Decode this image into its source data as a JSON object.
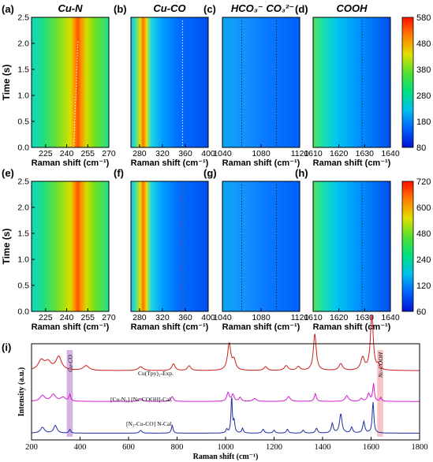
{
  "chart_data": [
    {
      "type": "heatmap",
      "panel": "(a)",
      "title": "Cu-N",
      "xlabel": "Raman shift (cm⁻¹)",
      "ylabel": "Time (s)",
      "xlim": [
        215,
        270
      ],
      "xticks": [
        225,
        240,
        255,
        270
      ],
      "ylim": [
        0,
        2.5
      ],
      "yticks": [
        0.0,
        0.5,
        1.0,
        1.5,
        2.0,
        2.5
      ],
      "peak_center": 245,
      "peak_end": 248,
      "marker_style": "dotted-drifting"
    },
    {
      "type": "heatmap",
      "panel": "(b)",
      "title": "Cu-CO",
      "xlabel": "Raman shift (cm⁻¹)",
      "xlim": [
        265,
        400
      ],
      "xticks": [
        280,
        320,
        360,
        400
      ],
      "ylim": [
        0,
        2.5
      ],
      "peak_center": 293,
      "marker_x": 355
    },
    {
      "type": "heatmap",
      "panel": "(c)",
      "title": "HCO₃⁻  CO₃²⁻",
      "xlabel": "Raman shift (cm⁻¹)",
      "xlim": [
        1040,
        1120
      ],
      "xticks": [
        1040,
        1080,
        1120
      ],
      "ylim": [
        0,
        2.5
      ],
      "marker_x": [
        1060,
        1096
      ]
    },
    {
      "type": "heatmap",
      "panel": "(d)",
      "title": "COOH",
      "xlabel": "Raman shift (cm⁻¹)",
      "xlim": [
        1610,
        1640
      ],
      "xticks": [
        1610,
        1620,
        1630,
        1640
      ],
      "ylim": [
        0,
        2.5
      ],
      "marker_x": 1629
    },
    {
      "type": "heatmap",
      "panel": "(e)",
      "xlabel": "Raman shift (cm⁻¹)",
      "ylabel": "Time (s)",
      "xlim": [
        215,
        270
      ],
      "xticks": [
        225,
        240,
        255,
        270
      ],
      "ylim": [
        0,
        2.5
      ],
      "yticks": [
        0.0,
        0.5,
        1.0,
        1.5,
        2.0,
        2.5
      ],
      "peak_center": 245
    },
    {
      "type": "heatmap",
      "panel": "(f)",
      "xlabel": "Raman shift (cm⁻¹)",
      "xlim": [
        265,
        400
      ],
      "xticks": [
        280,
        320,
        360,
        400
      ],
      "ylim": [
        0,
        2.5
      ],
      "peak_center": 293,
      "marker_x": 355
    },
    {
      "type": "heatmap",
      "panel": "(g)",
      "xlabel": "Raman shift (cm⁻¹)",
      "xlim": [
        1040,
        1120
      ],
      "xticks": [
        1040,
        1080,
        1120
      ],
      "ylim": [
        0,
        2.5
      ],
      "marker_x": [
        1060,
        1096
      ]
    },
    {
      "type": "heatmap",
      "panel": "(h)",
      "xlabel": "Raman shift (cm⁻¹)",
      "xlim": [
        1610,
        1640
      ],
      "xticks": [
        1610,
        1620,
        1630,
        1640
      ],
      "ylim": [
        0,
        2.5
      ],
      "marker_x": 1629
    },
    {
      "type": "line",
      "panel": "(i)",
      "xlabel": "Raman shift (cm⁻¹)",
      "ylabel": "Intensity (a.u.)",
      "xlim": [
        200,
        1800
      ],
      "xticks": [
        200,
        400,
        600,
        800,
        1000,
        1200,
        1400,
        1600,
        1800
      ],
      "highlights": [
        {
          "label": "Cu-CO",
          "x": [
            345,
            370
          ],
          "color": "#c9a0dc"
        },
        {
          "label": "Nc-COOH",
          "x": [
            1625,
            1650
          ],
          "color": "#f4b6b6"
        }
      ],
      "series": [
        {
          "name": "Cu(Tpy)₂-Exp.",
          "color": "#cc1f1f",
          "baseline": 0.72,
          "peaks": [
            [
              240,
              0.1,
              15
            ],
            [
              268,
              0.08,
              15
            ],
            [
              312,
              0.14,
              14
            ],
            [
              425,
              0.05,
              14
            ],
            [
              650,
              0.04,
              12
            ],
            [
              785,
              0.07,
              8
            ],
            [
              850,
              0.05,
              8
            ],
            [
              1015,
              0.28,
              8
            ],
            [
              1035,
              0.1,
              8
            ],
            [
              1165,
              0.04,
              8
            ],
            [
              1250,
              0.05,
              9
            ],
            [
              1300,
              0.04,
              8
            ],
            [
              1368,
              0.38,
              7
            ],
            [
              1475,
              0.07,
              9
            ],
            [
              1565,
              0.13,
              9
            ],
            [
              1603,
              0.58,
              7
            ],
            [
              1630,
              0.05,
              6
            ]
          ]
        },
        {
          "name": "[Cu-N₃] [Nc-COOH]-Cal.",
          "color": "#d21cd2",
          "baseline": 0.4,
          "peaks": [
            [
              245,
              0.06,
              12
            ],
            [
              290,
              0.07,
              12
            ],
            [
              330,
              0.04,
              12
            ],
            [
              358,
              0.07,
              4
            ],
            [
              650,
              0.03,
              8
            ],
            [
              780,
              0.05,
              6
            ],
            [
              1010,
              0.09,
              6
            ],
            [
              1030,
              0.07,
              6
            ],
            [
              1060,
              0.04,
              6
            ],
            [
              1120,
              0.03,
              8
            ],
            [
              1260,
              0.05,
              8
            ],
            [
              1370,
              0.08,
              5
            ],
            [
              1500,
              0.06,
              8
            ],
            [
              1560,
              0.03,
              6
            ],
            [
              1590,
              0.08,
              6
            ],
            [
              1610,
              0.18,
              4
            ],
            [
              1640,
              0.04,
              4
            ]
          ]
        },
        {
          "name": "[N₃-Cu-CO] N-Cal.",
          "color": "#1f2fa0",
          "baseline": 0.07,
          "peaks": [
            [
              245,
              0.06,
              10
            ],
            [
              298,
              0.08,
              8
            ],
            [
              358,
              0.04,
              4
            ],
            [
              650,
              0.03,
              6
            ],
            [
              780,
              0.08,
              4
            ],
            [
              1005,
              0.04,
              4
            ],
            [
              1025,
              0.38,
              3
            ],
            [
              1035,
              0.12,
              4
            ],
            [
              1070,
              0.05,
              4
            ],
            [
              1155,
              0.04,
              5
            ],
            [
              1200,
              0.03,
              5
            ],
            [
              1255,
              0.04,
              5
            ],
            [
              1320,
              0.03,
              5
            ],
            [
              1375,
              0.05,
              5
            ],
            [
              1440,
              0.1,
              5
            ],
            [
              1475,
              0.2,
              6
            ],
            [
              1520,
              0.06,
              5
            ],
            [
              1570,
              0.12,
              5
            ],
            [
              1608,
              0.32,
              4
            ]
          ]
        }
      ]
    }
  ],
  "colorbars": [
    {
      "row": "top",
      "min": 80,
      "max": 580,
      "ticks": [
        580,
        480,
        380,
        280,
        180,
        80
      ]
    },
    {
      "row": "bottom",
      "min": 60,
      "max": 720,
      "ticks": [
        720,
        600,
        480,
        240,
        120,
        60
      ]
    }
  ],
  "colors": {
    "ramp": [
      "#0014d0",
      "#0060ff",
      "#00c0f0",
      "#00e080",
      "#50e030",
      "#e0e000",
      "#ff8000",
      "#ff1000"
    ],
    "marker_white": "#ffffff",
    "marker_black": "#222222",
    "marker_red": "#cc3322"
  }
}
